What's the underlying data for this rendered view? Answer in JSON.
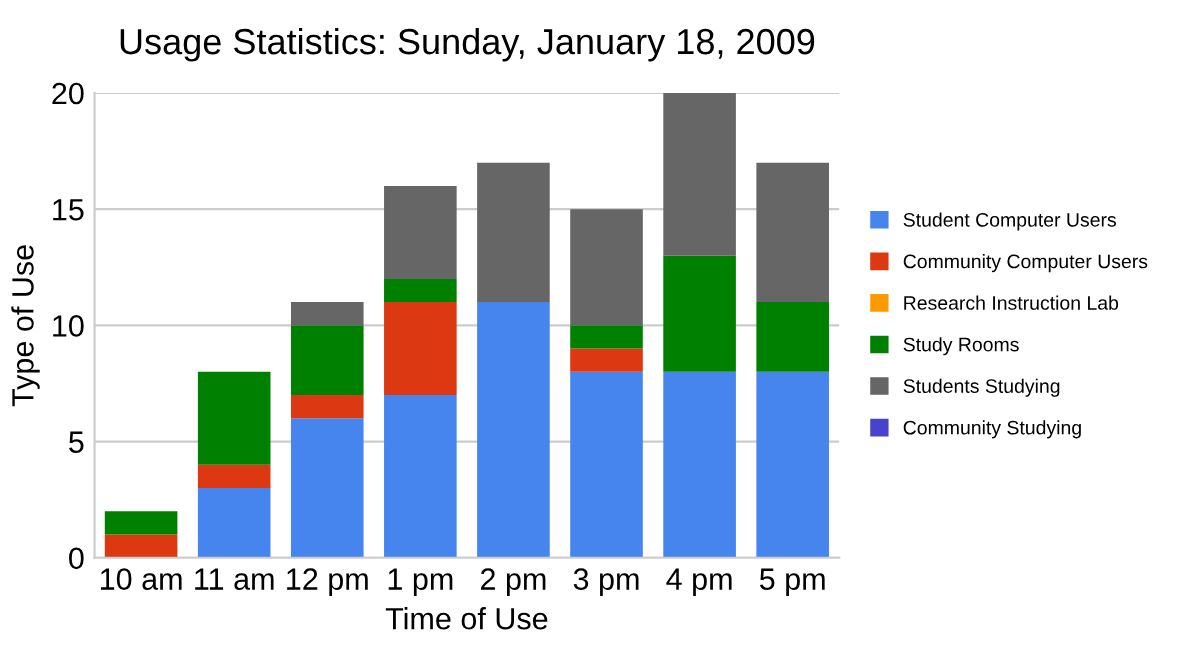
{
  "chart_data": {
    "type": "bar",
    "title": "Usage Statistics: Sunday, January 18, 2009",
    "xlabel": "Time of Use",
    "ylabel": "Type of Use",
    "categories": [
      "10 am",
      "11 am",
      "12 pm",
      "1 pm",
      "2 pm",
      "3 pm",
      "4 pm",
      "5 pm"
    ],
    "stacked": true,
    "series": [
      {
        "name": "Student Computer Users",
        "color": "#4684ee",
        "values": [
          0,
          3,
          6,
          7,
          11,
          8,
          8,
          8
        ]
      },
      {
        "name": "Community Computer Users",
        "color": "#dc3912",
        "values": [
          1,
          1,
          1,
          4,
          0,
          1,
          0,
          0
        ]
      },
      {
        "name": "Research Instruction Lab",
        "color": "#ff9900",
        "values": [
          0,
          0,
          0,
          0,
          0,
          0,
          0,
          0
        ]
      },
      {
        "name": "Study Rooms",
        "color": "#008000",
        "values": [
          1,
          4,
          3,
          1,
          0,
          1,
          5,
          3
        ]
      },
      {
        "name": "Students Studying",
        "color": "#666666",
        "values": [
          0,
          0,
          1,
          4,
          6,
          5,
          7,
          6
        ]
      },
      {
        "name": "Community Studying",
        "color": "#4942cc",
        "values": [
          0,
          0,
          0,
          0,
          0,
          0,
          0,
          0
        ]
      }
    ],
    "ylim": [
      0,
      20
    ],
    "yticks": [
      0,
      5,
      10,
      15,
      20
    ],
    "grid": "y",
    "legend": "right"
  }
}
